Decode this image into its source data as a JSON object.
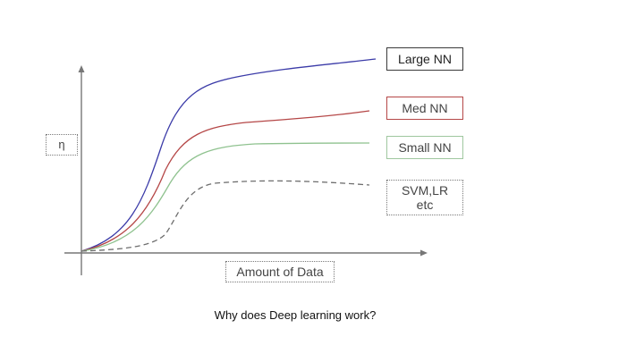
{
  "diagram": {
    "y_axis_label": "η",
    "x_axis_label": "Amount of Data",
    "caption": "Why does Deep learning work?",
    "legend": {
      "large": "Large NN",
      "med": "Med NN",
      "small": "Small NN",
      "svm_line1": "SVM,LR",
      "svm_line2": "etc"
    }
  },
  "colors": {
    "large": "#3b3ba8",
    "med": "#b54747",
    "small": "#8fc28f",
    "svm": "#6e6e6e",
    "axis": "#777777"
  }
}
